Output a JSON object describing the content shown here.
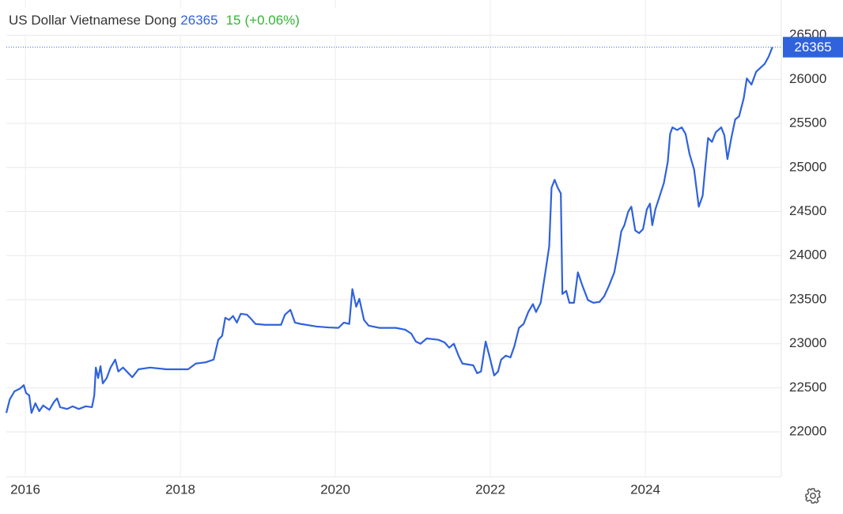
{
  "chart_data": {
    "type": "line",
    "title": "US Dollar Vietnamese Dong",
    "change": 15,
    "change_label": "(+0.06%)",
    "xlim": [
      2015.755,
      2025.755
    ],
    "xticks": [
      2016,
      2018,
      2020,
      2022,
      2024
    ],
    "ylim": [
      21490,
      26900
    ],
    "yticks": [
      22000,
      22500,
      23000,
      23500,
      24000,
      24500,
      25000,
      25500,
      26000,
      26500
    ],
    "grid": true,
    "series": [
      {
        "name": "US Dollar Vietnamese Dong",
        "color": "#2f62dc",
        "x": [
          2015.755,
          2015.8,
          2015.86,
          2015.93,
          2015.98,
          2016.01,
          2016.05,
          2016.08,
          2016.13,
          2016.18,
          2016.23,
          2016.31,
          2016.37,
          2016.41,
          2016.45,
          2016.54,
          2016.61,
          2016.69,
          2016.78,
          2016.86,
          2016.89,
          2016.91,
          2016.94,
          2016.97,
          2017.0,
          2017.05,
          2017.1,
          2017.16,
          2017.2,
          2017.26,
          2017.31,
          2017.38,
          2017.46,
          2017.61,
          2017.82,
          2017.97,
          2018.1,
          2018.2,
          2018.33,
          2018.43,
          2018.49,
          2018.54,
          2018.58,
          2018.63,
          2018.68,
          2018.73,
          2018.78,
          2018.86,
          2018.92,
          2018.97,
          2019.09,
          2019.3,
          2019.35,
          2019.42,
          2019.48,
          2019.55,
          2019.76,
          2019.91,
          2020.04,
          2020.11,
          2020.18,
          2020.22,
          2020.27,
          2020.31,
          2020.37,
          2020.43,
          2020.57,
          2020.78,
          2020.9,
          2020.98,
          2021.04,
          2021.1,
          2021.18,
          2021.33,
          2021.41,
          2021.47,
          2021.53,
          2021.59,
          2021.64,
          2021.78,
          2021.83,
          2021.88,
          2021.94,
          2022.0,
          2022.05,
          2022.1,
          2022.14,
          2022.2,
          2022.26,
          2022.31,
          2022.37,
          2022.43,
          2022.49,
          2022.55,
          2022.59,
          2022.65,
          2022.71,
          2022.76,
          2022.79,
          2022.83,
          2022.87,
          2022.91,
          2022.93,
          2022.98,
          2023.02,
          2023.08,
          2023.13,
          2023.19,
          2023.26,
          2023.33,
          2023.41,
          2023.47,
          2023.53,
          2023.6,
          2023.65,
          2023.69,
          2023.73,
          2023.78,
          2023.82,
          2023.87,
          2023.92,
          2023.97,
          2024.02,
          2024.06,
          2024.09,
          2024.13,
          2024.18,
          2024.24,
          2024.29,
          2024.32,
          2024.35,
          2024.41,
          2024.47,
          2024.52,
          2024.57,
          2024.63,
          2024.69,
          2024.74,
          2024.78,
          2024.81,
          2024.86,
          2024.91,
          2024.98,
          2025.02,
          2025.06,
          2025.11,
          2025.16,
          2025.21,
          2025.27,
          2025.31,
          2025.37,
          2025.43,
          2025.49,
          2025.54,
          2025.59,
          2025.64
        ],
        "values": [
          22215,
          22370,
          22460,
          22490,
          22530,
          22440,
          22415,
          22215,
          22325,
          22235,
          22300,
          22250,
          22340,
          22380,
          22280,
          22260,
          22290,
          22260,
          22290,
          22280,
          22415,
          22730,
          22610,
          22745,
          22550,
          22610,
          22730,
          22820,
          22685,
          22730,
          22685,
          22620,
          22710,
          22730,
          22710,
          22710,
          22710,
          22775,
          22790,
          22820,
          23045,
          23090,
          23295,
          23270,
          23315,
          23240,
          23340,
          23330,
          23275,
          23225,
          23215,
          23215,
          23330,
          23385,
          23240,
          23225,
          23195,
          23185,
          23180,
          23240,
          23225,
          23620,
          23420,
          23510,
          23270,
          23205,
          23180,
          23180,
          23160,
          23115,
          23025,
          23000,
          23060,
          23045,
          23015,
          22955,
          23000,
          22865,
          22775,
          22755,
          22665,
          22685,
          23025,
          22820,
          22640,
          22685,
          22820,
          22865,
          22845,
          22970,
          23180,
          23225,
          23360,
          23450,
          23360,
          23465,
          23810,
          24105,
          24770,
          24860,
          24770,
          24705,
          23565,
          23600,
          23465,
          23465,
          23810,
          23655,
          23495,
          23465,
          23475,
          23540,
          23655,
          23810,
          24050,
          24275,
          24345,
          24500,
          24555,
          24285,
          24255,
          24300,
          24525,
          24590,
          24345,
          24525,
          24660,
          24825,
          25065,
          25380,
          25455,
          25425,
          25455,
          25380,
          25155,
          24975,
          24555,
          24680,
          25065,
          25335,
          25290,
          25400,
          25455,
          25365,
          25095,
          25335,
          25545,
          25580,
          25785,
          26010,
          25940,
          26085,
          26135,
          26175,
          26255,
          26365
        ]
      }
    ]
  }
}
